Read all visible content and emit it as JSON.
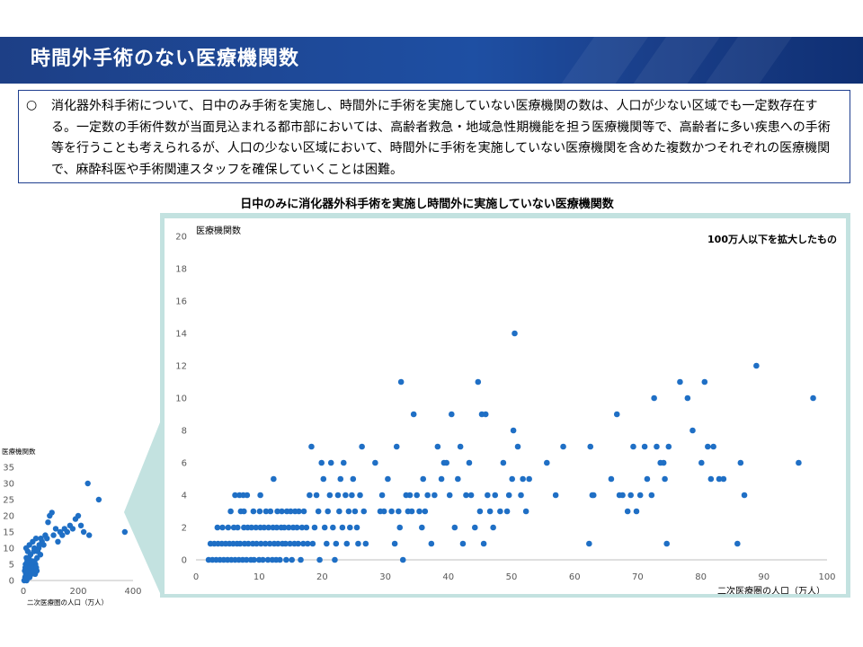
{
  "header": {
    "title": "時間外手術のない医療機関数"
  },
  "summary": {
    "bullet": "○",
    "text": "消化器外科手術について、日中のみ手術を実施し、時間外に手術を実施していない医療機関の数は、人口が少ない区域でも一定数存在する。一定数の手術件数が当面見込まれる都市部においては、高齢者救急・地域急性期機能を担う医療機関等で、高齢者に多い疾患への手術等を行うことも考えられるが、人口の少ない区域において、時間外に手術を実施していない医療機関を含めた複数かつそれぞれの医療機関で、麻酔科医や手術関連スタッフを確保していくことは困難。"
  },
  "chart_data": [
    {
      "type": "scatter",
      "title": "日中のみに消化器外科手術を実施し時間外に実施していない医療機関数",
      "annotation": "100万人以下を拡大したもの",
      "xlabel": "二次医療圏の人口（万人）",
      "ylabel": "医療機関数",
      "xlim": [
        0,
        100
      ],
      "ylim": [
        0,
        20
      ],
      "xticks": [
        0,
        10,
        20,
        30,
        40,
        50,
        60,
        70,
        80,
        90,
        100
      ],
      "yticks": [
        0,
        2,
        4,
        6,
        8,
        10,
        12,
        14,
        16,
        18,
        20
      ],
      "grid": false,
      "color": "#1f6fc5",
      "points": [
        [
          2,
          0
        ],
        [
          2.3,
          1
        ],
        [
          2.6,
          0
        ],
        [
          2.9,
          1
        ],
        [
          3.2,
          0
        ],
        [
          3.5,
          1
        ],
        [
          3.8,
          0
        ],
        [
          3.4,
          2
        ],
        [
          4.1,
          1
        ],
        [
          4.4,
          0
        ],
        [
          4.7,
          1
        ],
        [
          4.2,
          2
        ],
        [
          5,
          0
        ],
        [
          5.3,
          1
        ],
        [
          5.6,
          0
        ],
        [
          5.1,
          2
        ],
        [
          5.9,
          1
        ],
        [
          5.5,
          3
        ],
        [
          6.2,
          0
        ],
        [
          6.5,
          1
        ],
        [
          6,
          2
        ],
        [
          6.2,
          4
        ],
        [
          6.8,
          0
        ],
        [
          6.6,
          2
        ],
        [
          7,
          1
        ],
        [
          7.1,
          3
        ],
        [
          6.9,
          4
        ],
        [
          7.4,
          0
        ],
        [
          7.6,
          2
        ],
        [
          7.7,
          1
        ],
        [
          7.6,
          3
        ],
        [
          7.5,
          4
        ],
        [
          8,
          0
        ],
        [
          8.2,
          2
        ],
        [
          8.3,
          1
        ],
        [
          8.1,
          4
        ],
        [
          8.7,
          0
        ],
        [
          8.8,
          2
        ],
        [
          9,
          1
        ],
        [
          9.1,
          3
        ],
        [
          9.2,
          0
        ],
        [
          9.5,
          2
        ],
        [
          9.6,
          1
        ],
        [
          10,
          0
        ],
        [
          10.2,
          2
        ],
        [
          10.3,
          1
        ],
        [
          10.1,
          3
        ],
        [
          10.2,
          4
        ],
        [
          10.6,
          0
        ],
        [
          10.8,
          2
        ],
        [
          11,
          1
        ],
        [
          11.1,
          3
        ],
        [
          11.4,
          0
        ],
        [
          11.5,
          2
        ],
        [
          11.7,
          1
        ],
        [
          11.8,
          3
        ],
        [
          12.1,
          0
        ],
        [
          12.2,
          2
        ],
        [
          12.4,
          1
        ],
        [
          12.3,
          5
        ],
        [
          12.7,
          0
        ],
        [
          12.8,
          2
        ],
        [
          13,
          1
        ],
        [
          12.9,
          3
        ],
        [
          13.3,
          0
        ],
        [
          13.5,
          2
        ],
        [
          13.7,
          1
        ],
        [
          13.6,
          3
        ],
        [
          14,
          2
        ],
        [
          14.2,
          1
        ],
        [
          14.4,
          3
        ],
        [
          14.3,
          0
        ],
        [
          14.7,
          2
        ],
        [
          14.9,
          1
        ],
        [
          15,
          3
        ],
        [
          15.2,
          0
        ],
        [
          15.4,
          2
        ],
        [
          15.6,
          1
        ],
        [
          15.7,
          3
        ],
        [
          16,
          2
        ],
        [
          16.2,
          1
        ],
        [
          16.3,
          3
        ],
        [
          16.6,
          0
        ],
        [
          16.8,
          2
        ],
        [
          17,
          1
        ],
        [
          17.1,
          3
        ],
        [
          17.5,
          2
        ],
        [
          17.7,
          1
        ],
        [
          18,
          4
        ],
        [
          18.3,
          7
        ],
        [
          18.5,
          1
        ],
        [
          18.8,
          2
        ],
        [
          19.1,
          4
        ],
        [
          19.4,
          3
        ],
        [
          19.6,
          0
        ],
        [
          19.9,
          6
        ],
        [
          20.2,
          5
        ],
        [
          20.4,
          2
        ],
        [
          20.7,
          1
        ],
        [
          20.9,
          3
        ],
        [
          21.2,
          4
        ],
        [
          21.4,
          6
        ],
        [
          21.7,
          2
        ],
        [
          22,
          0
        ],
        [
          22.2,
          1
        ],
        [
          22.5,
          4
        ],
        [
          22.7,
          3
        ],
        [
          22.9,
          5
        ],
        [
          23.2,
          2
        ],
        [
          23.4,
          6
        ],
        [
          23.7,
          4
        ],
        [
          23.9,
          1
        ],
        [
          24.2,
          3
        ],
        [
          24.4,
          2
        ],
        [
          24.7,
          4
        ],
        [
          24.9,
          5
        ],
        [
          25.2,
          3
        ],
        [
          25.5,
          2
        ],
        [
          25.7,
          1
        ],
        [
          26,
          4
        ],
        [
          26.3,
          7
        ],
        [
          26.6,
          3
        ],
        [
          26.9,
          1
        ],
        [
          28.4,
          6
        ],
        [
          29.2,
          3
        ],
        [
          29.5,
          4
        ],
        [
          29.8,
          3
        ],
        [
          30.4,
          5
        ],
        [
          31,
          3
        ],
        [
          31.5,
          1
        ],
        [
          31.8,
          7
        ],
        [
          32.1,
          3
        ],
        [
          32.3,
          2
        ],
        [
          32.5,
          11
        ],
        [
          32.8,
          0
        ],
        [
          33.3,
          4
        ],
        [
          33.6,
          3
        ],
        [
          33.9,
          4
        ],
        [
          34.2,
          3
        ],
        [
          34.5,
          9
        ],
        [
          35,
          4
        ],
        [
          35.4,
          3
        ],
        [
          35.8,
          2
        ],
        [
          36,
          5
        ],
        [
          36.3,
          3
        ],
        [
          36.7,
          4
        ],
        [
          37.3,
          1
        ],
        [
          37.8,
          4
        ],
        [
          38.3,
          7
        ],
        [
          38.9,
          5
        ],
        [
          39.3,
          6
        ],
        [
          39.7,
          6
        ],
        [
          40.2,
          4
        ],
        [
          40.5,
          9
        ],
        [
          41,
          2
        ],
        [
          41.5,
          5
        ],
        [
          41.9,
          7
        ],
        [
          42.3,
          1
        ],
        [
          42.8,
          4
        ],
        [
          43.3,
          6
        ],
        [
          43.6,
          4
        ],
        [
          44.2,
          2
        ],
        [
          44.7,
          11
        ],
        [
          45,
          3
        ],
        [
          45.3,
          9
        ],
        [
          45.6,
          1
        ],
        [
          45.9,
          9
        ],
        [
          46.2,
          4
        ],
        [
          46.6,
          3
        ],
        [
          47.1,
          2
        ],
        [
          47.4,
          4
        ],
        [
          48.2,
          3
        ],
        [
          48.7,
          6
        ],
        [
          49.3,
          3
        ],
        [
          49.6,
          4
        ],
        [
          50.1,
          5
        ],
        [
          50.3,
          8
        ],
        [
          50.5,
          14
        ],
        [
          51,
          7
        ],
        [
          51.5,
          4
        ],
        [
          51.8,
          5
        ],
        [
          52.3,
          3
        ],
        [
          52.8,
          5
        ],
        [
          57,
          4
        ],
        [
          58.2,
          7
        ],
        [
          55.6,
          6
        ],
        [
          62.3,
          1
        ],
        [
          62.5,
          7
        ],
        [
          62.8,
          4
        ],
        [
          63,
          4
        ],
        [
          65.8,
          5
        ],
        [
          66.7,
          9
        ],
        [
          67.1,
          4
        ],
        [
          67.6,
          4
        ],
        [
          68.4,
          3
        ],
        [
          68.9,
          4
        ],
        [
          69.3,
          7
        ],
        [
          69.8,
          3
        ],
        [
          70.4,
          4
        ],
        [
          71.1,
          7
        ],
        [
          71.5,
          5
        ],
        [
          72.2,
          4
        ],
        [
          72.6,
          10
        ],
        [
          73,
          7
        ],
        [
          73.6,
          6
        ],
        [
          74.1,
          6
        ],
        [
          74.3,
          5
        ],
        [
          74.6,
          1
        ],
        [
          74.9,
          7
        ],
        [
          76.7,
          11
        ],
        [
          77.9,
          10
        ],
        [
          78.7,
          8
        ],
        [
          80.1,
          6
        ],
        [
          80.6,
          11
        ],
        [
          81.1,
          7
        ],
        [
          81.6,
          5
        ],
        [
          82,
          7
        ],
        [
          82.9,
          5
        ],
        [
          83.6,
          5
        ],
        [
          85.8,
          1
        ],
        [
          86.3,
          6
        ],
        [
          86.9,
          4
        ],
        [
          88.8,
          12
        ],
        [
          95.5,
          6
        ],
        [
          97.8,
          10
        ]
      ]
    },
    {
      "type": "scatter",
      "title": "",
      "xlabel": "二次医療圏の人口（万人）",
      "ylabel": "医療機関数",
      "xlim": [
        0,
        400
      ],
      "ylim": [
        0,
        35
      ],
      "xticks": [
        0,
        200,
        400
      ],
      "yticks": [
        0,
        5,
        10,
        15,
        20,
        25,
        30,
        35
      ],
      "grid": false,
      "color": "#1f6fc5",
      "points": [
        [
          3,
          0
        ],
        [
          6,
          1
        ],
        [
          9,
          2
        ],
        [
          12,
          0
        ],
        [
          15,
          3
        ],
        [
          18,
          1
        ],
        [
          21,
          4
        ],
        [
          24,
          2
        ],
        [
          27,
          5
        ],
        [
          30,
          3
        ],
        [
          14,
          6
        ],
        [
          20,
          7
        ],
        [
          26,
          8
        ],
        [
          32,
          6
        ],
        [
          38,
          9
        ],
        [
          44,
          5
        ],
        [
          50,
          7
        ],
        [
          56,
          10
        ],
        [
          62,
          8
        ],
        [
          68,
          12
        ],
        [
          74,
          11
        ],
        [
          80,
          14
        ],
        [
          86,
          13
        ],
        [
          90,
          18
        ],
        [
          96,
          20
        ],
        [
          104,
          21
        ],
        [
          110,
          14
        ],
        [
          118,
          16
        ],
        [
          126,
          12
        ],
        [
          134,
          15
        ],
        [
          142,
          14
        ],
        [
          150,
          16
        ],
        [
          160,
          15
        ],
        [
          170,
          17
        ],
        [
          180,
          16
        ],
        [
          190,
          19
        ],
        [
          200,
          20
        ],
        [
          210,
          17
        ],
        [
          220,
          15
        ],
        [
          235,
          30
        ],
        [
          240,
          14
        ],
        [
          275,
          25
        ],
        [
          370,
          15
        ],
        [
          10,
          10
        ],
        [
          16,
          9
        ],
        [
          22,
          11
        ],
        [
          34,
          12
        ],
        [
          40,
          10
        ],
        [
          46,
          13
        ],
        [
          52,
          9
        ],
        [
          58,
          11
        ],
        [
          64,
          13
        ],
        [
          8,
          5
        ],
        [
          11,
          7
        ],
        [
          5,
          3
        ],
        [
          7,
          4
        ],
        [
          13,
          1
        ],
        [
          17,
          2
        ],
        [
          19,
          3
        ],
        [
          23,
          1
        ],
        [
          25,
          4
        ],
        [
          29,
          2
        ],
        [
          31,
          5
        ],
        [
          35,
          4
        ],
        [
          37,
          3
        ],
        [
          41,
          6
        ],
        [
          43,
          2
        ],
        [
          47,
          4
        ],
        [
          49,
          3
        ]
      ]
    }
  ]
}
